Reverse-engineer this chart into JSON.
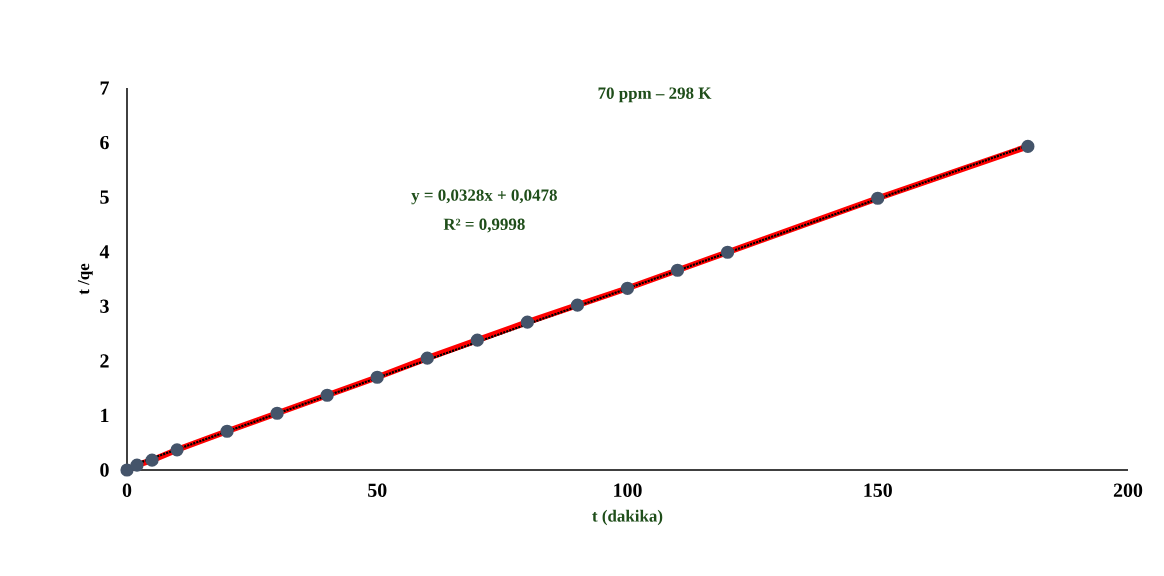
{
  "chart_data": {
    "type": "line",
    "title": "70 ppm – 298 K",
    "xlabel": "t (dakika)",
    "ylabel": "t /qe",
    "annotations": [
      "y = 0,0328x + 0,0478",
      "R² = 0,9998"
    ],
    "xlim": [
      0,
      200
    ],
    "ylim": [
      0,
      7
    ],
    "xticks": [
      0,
      50,
      100,
      150,
      200
    ],
    "yticks": [
      0,
      1,
      2,
      3,
      4,
      5,
      6,
      7
    ],
    "series": [
      {
        "color": "#ff0000",
        "marker": "circle",
        "line_style": "solid",
        "x": [
          0,
          2,
          5,
          10,
          20,
          30,
          40,
          50,
          60,
          70,
          80,
          90,
          100,
          110,
          120,
          150,
          180
        ],
        "values": [
          0,
          0.09,
          0.18,
          0.37,
          0.71,
          1.04,
          1.37,
          1.7,
          2.05,
          2.38,
          2.71,
          3.02,
          3.33,
          3.66,
          3.99,
          4.98,
          5.93
        ]
      },
      {
        "type": "line",
        "color": "#000000",
        "marker": "none",
        "line_style": "dotted",
        "x": [
          0,
          180
        ],
        "values": [
          0.05,
          5.95
        ]
      }
    ]
  }
}
